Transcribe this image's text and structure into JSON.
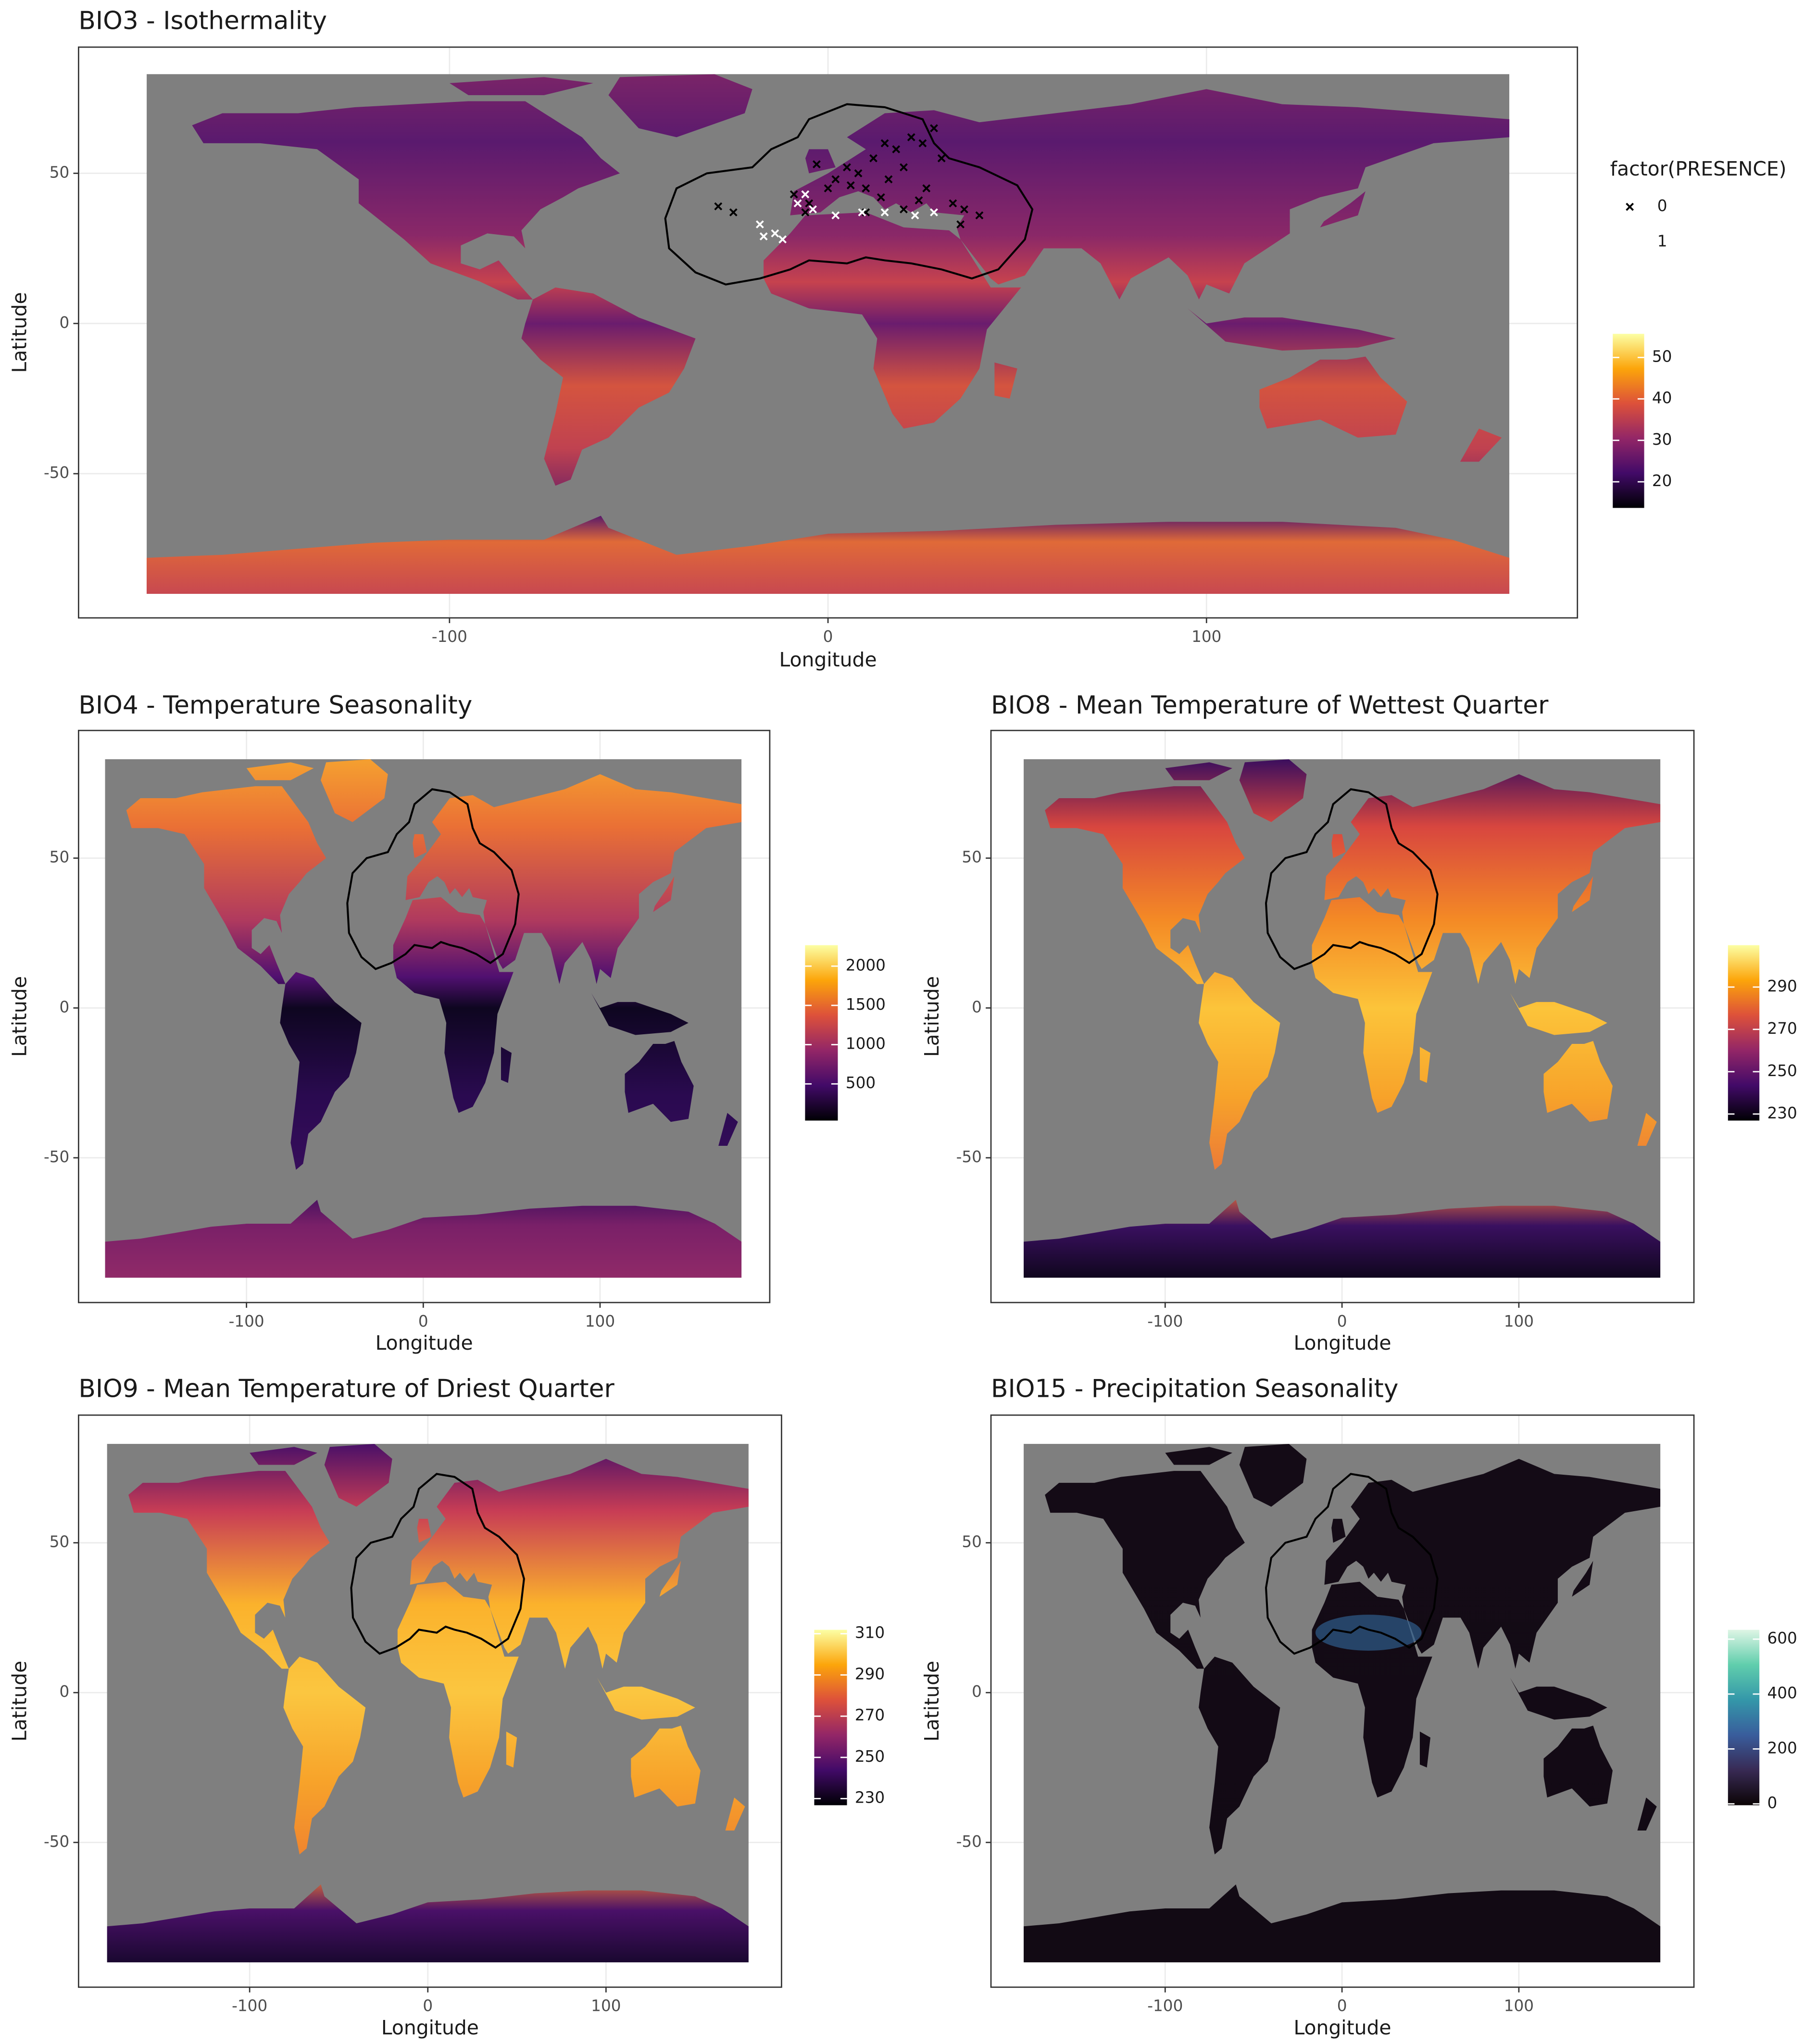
{
  "chart_data": [
    {
      "type": "map",
      "title": "BIO3 - Isothermality",
      "xlabel": "Longitude",
      "ylabel": "Latitude",
      "xlim": [
        -198,
        198
      ],
      "ylim": [
        -98,
        92
      ],
      "xticks": [
        -100,
        0,
        100
      ],
      "yticks": [
        -50,
        0,
        50
      ],
      "grid": true,
      "colorbar": {
        "palette": "inferno",
        "lim": [
          13.7,
          55.7
        ],
        "ticks": [
          20,
          30,
          40,
          50
        ]
      },
      "legend_title": "factor(PRESENCE)",
      "series": [
        {
          "name": "0",
          "marker": "x",
          "color": "#000000",
          "x": [
            -29,
            -25,
            -9,
            -5,
            0,
            2,
            5,
            8,
            10,
            12,
            15,
            18,
            20,
            22,
            25,
            28,
            30,
            14,
            24,
            33,
            36,
            40,
            -3,
            6,
            16,
            26,
            35,
            20,
            -6,
            10
          ],
          "y": [
            39,
            37,
            43,
            40,
            45,
            48,
            52,
            50,
            45,
            55,
            60,
            58,
            52,
            62,
            60,
            65,
            55,
            42,
            41,
            40,
            38,
            36,
            53,
            46,
            48,
            45,
            33,
            38,
            37,
            37
          ]
        },
        {
          "name": "1",
          "marker": "x",
          "color": "#ffffff",
          "x": [
            -18,
            -17,
            -14,
            -12,
            -8,
            -4,
            2,
            9,
            15,
            23,
            28,
            -6
          ],
          "y": [
            33,
            29,
            30,
            28,
            40,
            38,
            36,
            37,
            37,
            36,
            37,
            43
          ]
        }
      ]
    },
    {
      "type": "map",
      "title": "BIO4 - Temperature Seasonality",
      "xlabel": "Longitude",
      "ylabel": "Latitude",
      "xlim": [
        -195,
        196
      ],
      "ylim": [
        -98.3,
        92.6
      ],
      "xticks": [
        -100,
        0,
        100
      ],
      "yticks": [
        -50,
        0,
        50
      ],
      "grid": true,
      "colorbar": {
        "palette": "inferno",
        "lim": [
          33,
          2267
        ],
        "ticks": [
          500,
          1000,
          1500,
          2000
        ]
      }
    },
    {
      "type": "map",
      "title": "BIO8 - Mean Temperature of Wettest Quarter",
      "xlabel": "Longitude",
      "ylabel": "Latitude",
      "xlim": [
        -198.5,
        199
      ],
      "ylim": [
        -98.3,
        92.6
      ],
      "xticks": [
        -100,
        0,
        100
      ],
      "yticks": [
        -50,
        0,
        50
      ],
      "grid": true,
      "colorbar": {
        "palette": "inferno",
        "lim": [
          226.9,
          309.8
        ],
        "ticks": [
          230,
          250,
          270,
          290
        ]
      }
    },
    {
      "type": "map",
      "title": "BIO9 - Mean Temperature of Driest Quarter",
      "xlabel": "Longitude",
      "ylabel": "Latitude",
      "xlim": [
        -196,
        198.5
      ],
      "ylim": [
        -98.3,
        92.6
      ],
      "xticks": [
        -100,
        0,
        100
      ],
      "yticks": [
        -50,
        0,
        50
      ],
      "grid": true,
      "colorbar": {
        "palette": "inferno",
        "lim": [
          226.8,
          311.9
        ],
        "ticks": [
          230,
          250,
          270,
          290,
          310
        ]
      }
    },
    {
      "type": "map",
      "title": "BIO15 - Precipitation Seasonality",
      "xlabel": "Longitude",
      "ylabel": "Latitude",
      "xlim": [
        -198.5,
        199
      ],
      "ylim": [
        -98.3,
        92.6
      ],
      "xticks": [
        -100,
        0,
        100
      ],
      "yticks": [
        -50,
        0,
        50
      ],
      "grid": true,
      "colorbar": {
        "palette": "mako",
        "lim": [
          -5,
          634
        ],
        "ticks": [
          0,
          200,
          400,
          600
        ]
      }
    }
  ]
}
